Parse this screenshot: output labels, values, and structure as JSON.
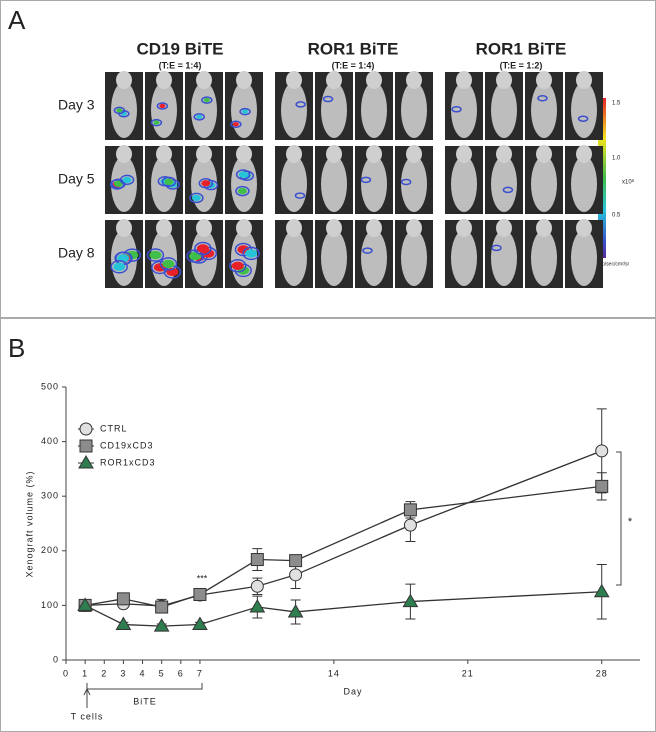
{
  "panel_a": {
    "label": "A",
    "groups": [
      {
        "title": "CD19 BiTE",
        "subtitle": "(T:E = 1:4)"
      },
      {
        "title": "ROR1 BiTE",
        "subtitle": "(T:E = 1:4)"
      },
      {
        "title": "ROR1 BiTE",
        "subtitle": "(T:E = 1:2)"
      }
    ],
    "rows": [
      "Day 3",
      "Day 5",
      "Day 8"
    ],
    "colorbar": {
      "labels": [
        "1.5",
        "1.0",
        "0.5"
      ],
      "scale": "x10⁸",
      "unit": "p/sec/cm²/sr"
    }
  },
  "chart_data": {
    "type": "line",
    "panel_label": "B",
    "x_label": "Day",
    "y_label": "Xenograft volume (%)",
    "x": [
      1,
      3,
      5,
      7,
      10,
      12,
      18,
      28
    ],
    "series": [
      {
        "name": "CTRL",
        "color": "#e0e0e0",
        "marker": "circle",
        "values": [
          100,
          103,
          99,
          119,
          135,
          156,
          247,
          383
        ],
        "errors": [
          4,
          5,
          12,
          10,
          15,
          25,
          30,
          77
        ]
      },
      {
        "name": "CD19xCD3",
        "color": "#8c8c8c",
        "marker": "square",
        "values": [
          100,
          112,
          97,
          120,
          184,
          182,
          275,
          318
        ],
        "errors": [
          4,
          6,
          10,
          8,
          20,
          8,
          15,
          25
        ]
      },
      {
        "name": "ROR1xCD3",
        "color": "#2e7d4f",
        "marker": "triangle",
        "values": [
          100,
          65,
          62,
          65,
          97,
          88,
          107,
          125
        ],
        "errors": [
          4,
          4,
          4,
          4,
          20,
          22,
          32,
          50
        ]
      }
    ],
    "xlim": [
      0,
      30
    ],
    "ylim": [
      0,
      500
    ],
    "xticks": [
      0,
      1,
      2,
      3,
      4,
      5,
      6,
      7,
      14,
      21,
      28
    ],
    "yticks": [
      0,
      100,
      200,
      300,
      400,
      500
    ],
    "legend": "upper-left",
    "annotations": {
      "treatment": "BiTE",
      "injection": "T cells",
      "significance_day7": "***",
      "significance_end": "*"
    }
  }
}
